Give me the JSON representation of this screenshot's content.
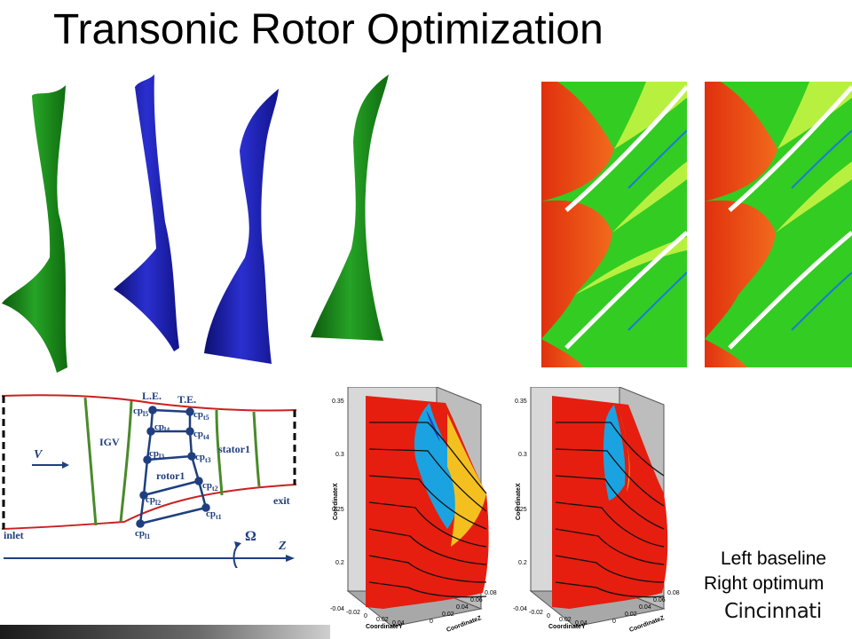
{
  "slide": {
    "title": "Transonic Rotor Optimization"
  },
  "schematic": {
    "le_label": "L.E.",
    "te_label": "T.E.",
    "igv_label": "IGV",
    "rotor_label": "rotor1",
    "stator_label": "stator1",
    "inlet_label": "inlet",
    "exit_label": "exit",
    "v_label": "V",
    "omega_label": "Ω",
    "z_label": "Z",
    "le_points": [
      "cp",
      "cp",
      "cp",
      "cp",
      "cp"
    ],
    "le_subs": [
      "l5",
      "l4",
      "l3",
      "l2",
      "l1"
    ],
    "te_subs": [
      "t5",
      "t4",
      "t3",
      "t2",
      "t1"
    ]
  },
  "surface_plots": {
    "x_axis_label": "CoordinateX",
    "y_axis_label": "CoordinateY",
    "z_axis_label": "CoordinateZ",
    "x_ticks": [
      "0.35",
      "0.3",
      "0.25",
      "0.2"
    ],
    "y_ticks": [
      "-0.04",
      "-0.02",
      "0",
      "0.02",
      "0.04"
    ],
    "z_ticks": [
      "0",
      "0.02",
      "0.04",
      "0.06",
      "0.08"
    ]
  },
  "captions": {
    "left": "Left baseline",
    "right": "Right optimum"
  },
  "logo": {
    "text": "Cincinnati"
  },
  "colors": {
    "blade_green": "#1e8a1e",
    "blade_blue": "#1d1fa8",
    "contour_red": "#e83a10",
    "contour_green": "#33cc22",
    "schematic_red": "#cc2020",
    "schematic_blue": "#1f3f7f",
    "schematic_green": "#4a8a2a"
  }
}
